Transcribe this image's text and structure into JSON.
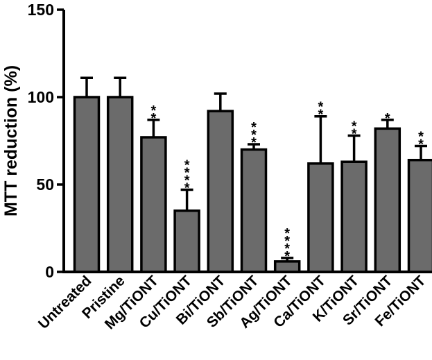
{
  "chart_data": {
    "type": "bar",
    "ylabel": "MTT reduction  (%)",
    "ylim": [
      0,
      150
    ],
    "yticks": [
      0,
      50,
      100,
      150
    ],
    "categories": [
      "Untreated",
      "Pristine",
      "Mg/TiONT",
      "Cu/TiONT",
      "Bi/TiONT",
      "Sb/TiONT",
      "Ag/TiONT",
      "Ca/TiONT",
      "K/TiONT",
      "Sr/TiONT",
      "Fe/TiONT"
    ],
    "values": [
      100,
      100,
      77,
      35,
      92,
      70,
      6,
      62,
      63,
      82,
      64
    ],
    "error": [
      11,
      11,
      10,
      12,
      10,
      3,
      2,
      27,
      15,
      5,
      8
    ],
    "significance": [
      "",
      "",
      "**",
      "****",
      "",
      "***",
      "****",
      "**",
      "**",
      "*",
      "**"
    ],
    "bar_color": "#6b6b6b",
    "edge_color": "#000000"
  }
}
